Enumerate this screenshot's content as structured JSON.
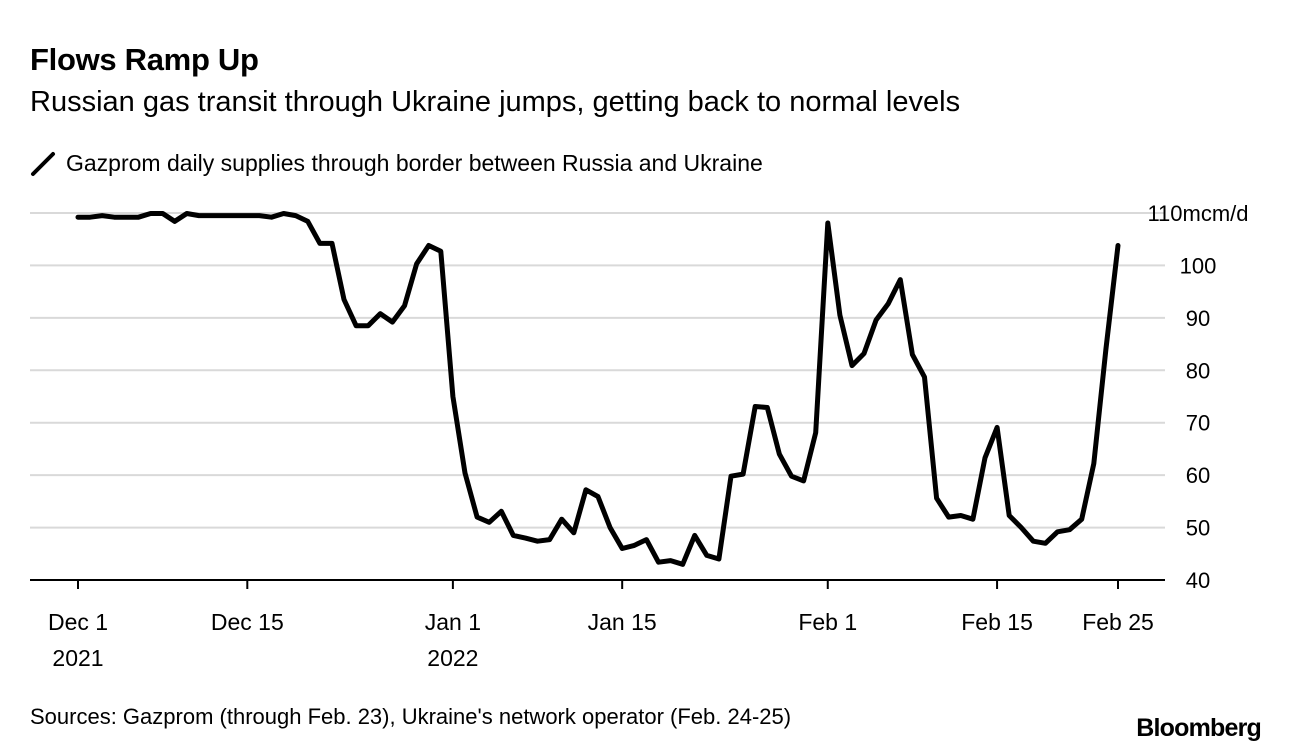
{
  "chart_data": {
    "type": "line",
    "title": "Flows Ramp Up",
    "subtitle": "Russian gas transit through Ukraine jumps, getting back to normal levels",
    "legend": [
      "Gazprom daily supplies through border between Russia and Ukraine"
    ],
    "unit_label": "110mcm/d",
    "ylim": [
      40,
      110
    ],
    "yticks": [
      40,
      50,
      60,
      70,
      80,
      90,
      100,
      110
    ],
    "ytick_labels": [
      "40",
      "50",
      "60",
      "70",
      "80",
      "90",
      "100",
      "110"
    ],
    "xlim": [
      0,
      86
    ],
    "xticks": [
      {
        "day": 0,
        "line1": "Dec 1",
        "line2": "2021"
      },
      {
        "day": 14,
        "line1": "Dec 15",
        "line2": ""
      },
      {
        "day": 31,
        "line1": "Jan 1",
        "line2": "2022"
      },
      {
        "day": 45,
        "line1": "Jan 15",
        "line2": ""
      },
      {
        "day": 62,
        "line1": "Feb 1",
        "line2": ""
      },
      {
        "day": 76,
        "line1": "Feb 15",
        "line2": ""
      },
      {
        "day": 86,
        "line1": "Feb 25",
        "line2": ""
      }
    ],
    "series": [
      {
        "name": "Gazprom daily supplies through border between Russia and Ukraine",
        "color": "#000000",
        "values": [
          109.2,
          109.2,
          109.5,
          109.2,
          109.2,
          109.2,
          109.9,
          109.9,
          108.4,
          109.9,
          109.5,
          109.5,
          109.5,
          109.5,
          109.5,
          109.5,
          109.2,
          109.9,
          109.5,
          108.4,
          104.2,
          104.2,
          93.5,
          88.5,
          88.5,
          90.8,
          89.2,
          92.3,
          100.3,
          103.8,
          102.7,
          75.0,
          60.4,
          52.0,
          51.0,
          53.1,
          48.5,
          48.0,
          47.4,
          47.7,
          51.6,
          49.0,
          57.2,
          55.9,
          50.0,
          46.0,
          46.6,
          47.7,
          43.4,
          43.7,
          43.0,
          48.5,
          44.7,
          44.0,
          59.8,
          60.2,
          73.1,
          72.9,
          64.0,
          59.8,
          58.9,
          68.1,
          108.1,
          90.5,
          80.9,
          83.2,
          89.6,
          92.7,
          97.3,
          83.0,
          78.7,
          55.6,
          52.0,
          52.3,
          51.6,
          63.3,
          69.1,
          52.3,
          50.0,
          47.4,
          47.0,
          49.2,
          49.6,
          51.6,
          62.2,
          84.0,
          103.8
        ]
      }
    ]
  },
  "source": "Sources: Gazprom (through Feb. 23), Ukraine's network operator (Feb. 24-25)",
  "brand": "Bloomberg"
}
